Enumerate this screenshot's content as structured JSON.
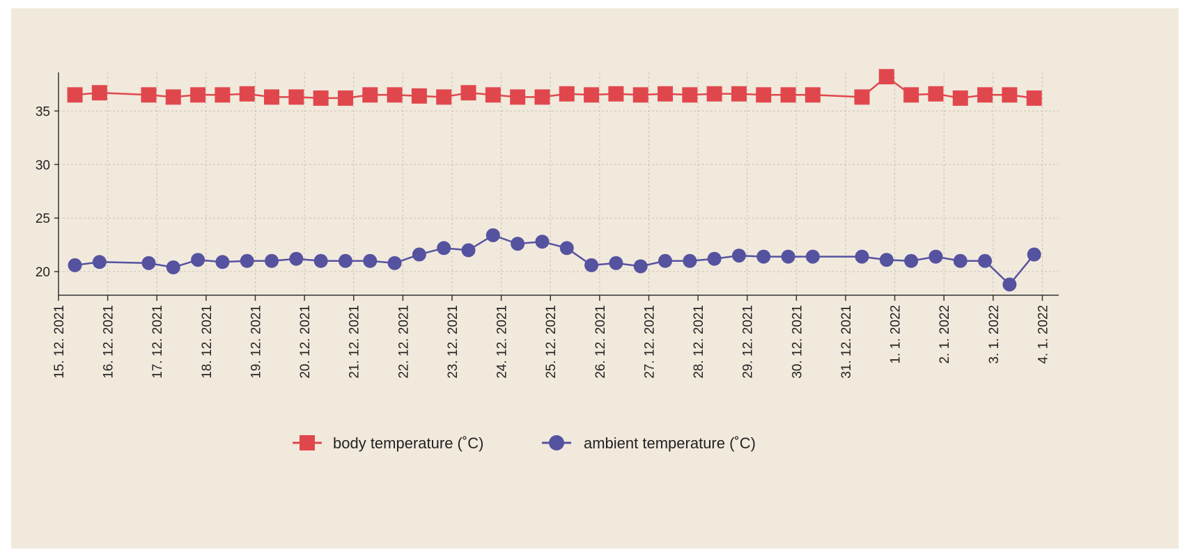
{
  "chart_data": {
    "type": "line",
    "title": "",
    "xlabel": "",
    "ylabel": "",
    "ylim": [
      17.8,
      38.6
    ],
    "yticks": [
      20,
      25,
      30,
      35
    ],
    "xlim": [
      "2021-12-15",
      "2022-01-04T08:00"
    ],
    "xticks": [
      "2021-12-15",
      "2021-12-16",
      "2021-12-17",
      "2021-12-18",
      "2021-12-19",
      "2021-12-20",
      "2021-12-21",
      "2021-12-22",
      "2021-12-23",
      "2021-12-24",
      "2021-12-25",
      "2021-12-26",
      "2021-12-27",
      "2021-12-28",
      "2021-12-29",
      "2021-12-30",
      "2021-12-31",
      "2022-01-01",
      "2022-01-02",
      "2022-01-03",
      "2022-01-04"
    ],
    "xtick_labels": [
      "15. 12. 2021",
      "16. 12. 2021",
      "17. 12. 2021",
      "18. 12. 2021",
      "19. 12. 2021",
      "20. 12. 2021",
      "21. 12. 2021",
      "22. 12. 2021",
      "23. 12. 2021",
      "24. 12. 2021",
      "25. 12. 2021",
      "26. 12. 2021",
      "27. 12. 2021",
      "28. 12. 2021",
      "29. 12. 2021",
      "30. 12. 2021",
      "31. 12. 2021",
      "1. 1. 2022",
      "2. 1. 2022",
      "3. 1. 2022",
      "4. 1. 2022"
    ],
    "grid": true,
    "legend": "bottom-center",
    "x": [
      "2021-12-15T08:00",
      "2021-12-15T20:00",
      "2021-12-16T20:00",
      "2021-12-17T08:00",
      "2021-12-17T20:00",
      "2021-12-18T08:00",
      "2021-12-18T20:00",
      "2021-12-19T08:00",
      "2021-12-19T20:00",
      "2021-12-20T08:00",
      "2021-12-20T20:00",
      "2021-12-21T08:00",
      "2021-12-21T20:00",
      "2021-12-22T08:00",
      "2021-12-22T20:00",
      "2021-12-23T08:00",
      "2021-12-23T20:00",
      "2021-12-24T08:00",
      "2021-12-24T20:00",
      "2021-12-25T08:00",
      "2021-12-25T20:00",
      "2021-12-26T08:00",
      "2021-12-26T20:00",
      "2021-12-27T08:00",
      "2021-12-27T20:00",
      "2021-12-28T08:00",
      "2021-12-28T20:00",
      "2021-12-29T08:00",
      "2021-12-29T20:00",
      "2021-12-30T08:00",
      "2021-12-31T08:00",
      "2021-12-31T20:00",
      "2022-01-01T08:00",
      "2022-01-01T20:00",
      "2022-01-02T08:00",
      "2022-01-02T20:00",
      "2022-01-03T08:00",
      "2022-01-03T20:00"
    ],
    "series": [
      {
        "name": "body temperature (˚C)",
        "color": "#e0474c",
        "marker": "square",
        "x": [
          "2021-12-15T08:00",
          "2021-12-15T20:00",
          "2021-12-16T20:00",
          "2021-12-17T08:00",
          "2021-12-17T20:00",
          "2021-12-18T08:00",
          "2021-12-18T20:00",
          "2021-12-19T08:00",
          "2021-12-19T20:00",
          "2021-12-20T08:00",
          "2021-12-20T20:00",
          "2021-12-21T08:00",
          "2021-12-21T20:00",
          "2021-12-22T08:00",
          "2021-12-22T20:00",
          "2021-12-23T08:00",
          "2021-12-23T20:00",
          "2021-12-24T08:00",
          "2021-12-24T20:00",
          "2021-12-25T08:00",
          "2021-12-25T20:00",
          "2021-12-26T08:00",
          "2021-12-26T20:00",
          "2021-12-27T08:00",
          "2021-12-27T20:00",
          "2021-12-28T08:00",
          "2021-12-28T20:00",
          "2021-12-29T08:00",
          "2021-12-29T20:00",
          "2021-12-30T08:00",
          "2021-12-31T08:00",
          "2021-12-31T20:00",
          "2022-01-01T08:00",
          "2022-01-01T20:00",
          "2022-01-02T08:00",
          "2022-01-02T20:00",
          "2022-01-03T08:00",
          "2022-01-03T20:00"
        ],
        "values": [
          36.5,
          36.7,
          36.5,
          36.3,
          36.5,
          36.5,
          36.6,
          36.3,
          36.3,
          36.2,
          36.2,
          36.5,
          36.5,
          36.4,
          36.3,
          36.7,
          36.5,
          36.3,
          36.3,
          36.6,
          36.5,
          36.6,
          36.5,
          36.6,
          36.5,
          36.6,
          36.6,
          36.5,
          36.5,
          36.5,
          36.3,
          38.2,
          36.5,
          36.6,
          36.2,
          36.5,
          36.5,
          36.2
        ]
      },
      {
        "name": "ambient temperature (˚C)",
        "color": "#5552a0",
        "marker": "circle",
        "x": [
          "2021-12-15T08:00",
          "2021-12-15T20:00",
          "2021-12-16T20:00",
          "2021-12-17T08:00",
          "2021-12-17T20:00",
          "2021-12-18T08:00",
          "2021-12-18T20:00",
          "2021-12-19T08:00",
          "2021-12-19T20:00",
          "2021-12-20T08:00",
          "2021-12-20T20:00",
          "2021-12-21T08:00",
          "2021-12-21T20:00",
          "2021-12-22T08:00",
          "2021-12-22T20:00",
          "2021-12-23T08:00",
          "2021-12-23T20:00",
          "2021-12-24T08:00",
          "2021-12-24T20:00",
          "2021-12-25T08:00",
          "2021-12-25T20:00",
          "2021-12-26T08:00",
          "2021-12-26T20:00",
          "2021-12-27T08:00",
          "2021-12-27T20:00",
          "2021-12-28T08:00",
          "2021-12-28T20:00",
          "2021-12-29T08:00",
          "2021-12-29T20:00",
          "2021-12-30T08:00",
          "2021-12-31T08:00",
          "2021-12-31T20:00",
          "2022-01-01T08:00",
          "2022-01-01T20:00",
          "2022-01-02T08:00",
          "2022-01-02T20:00",
          "2022-01-03T08:00",
          "2022-01-03T20:00"
        ],
        "values": [
          20.6,
          20.9,
          20.8,
          20.4,
          21.1,
          20.9,
          21.0,
          21.0,
          21.2,
          21.0,
          21.0,
          21.0,
          20.8,
          21.6,
          22.2,
          22.0,
          23.4,
          22.6,
          22.8,
          22.2,
          20.6,
          20.8,
          20.5,
          21.0,
          21.0,
          21.2,
          21.5,
          21.4,
          21.4,
          21.4,
          21.4,
          21.1,
          21.0,
          21.4,
          21.0,
          21.0,
          18.8,
          21.6
        ]
      }
    ]
  }
}
